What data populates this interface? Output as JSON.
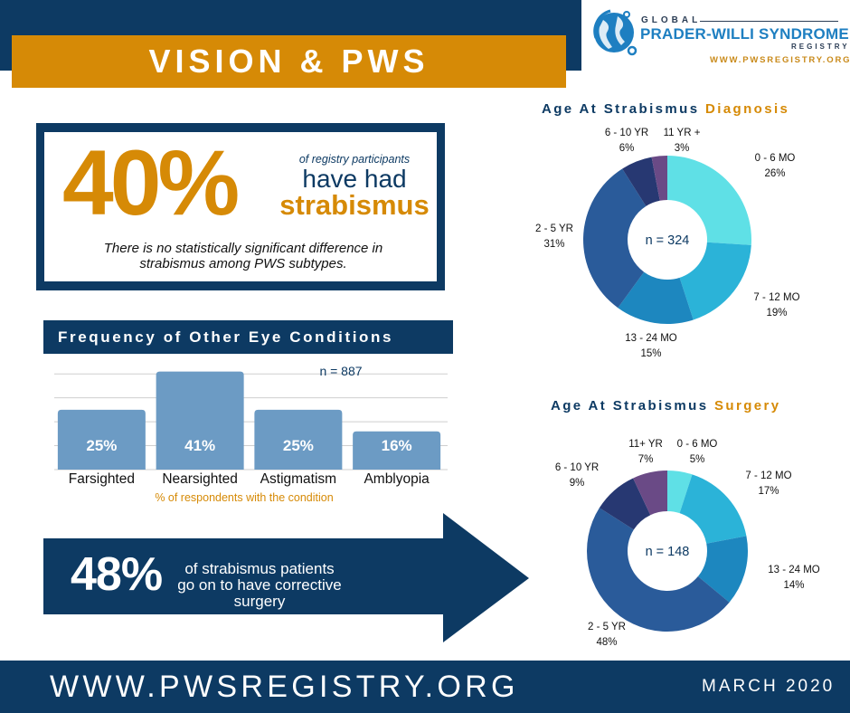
{
  "header": {
    "title": "VISION & PWS",
    "logo": {
      "line1": "GLOBAL",
      "line2": "PRADER-WILLI SYNDROME",
      "line3": "REGISTRY",
      "url": "WWW.PWSREGISTRY.ORG",
      "icon": "globe-icon"
    }
  },
  "stat": {
    "big": "40%",
    "small": "of registry participants",
    "mid": "have had",
    "strong": "strabismus",
    "note": "There is no statistically significant difference in strabismus among PWS subtypes."
  },
  "surgery": {
    "big": "48%",
    "text": "of strabismus patients go on to have corrective surgery"
  },
  "footer": {
    "url": "WWW.PWSREGISTRY.ORG",
    "date": "MARCH  2020"
  },
  "colors": {
    "navy": "#0d3a63",
    "orange": "#d68a06",
    "bar": "#6c9bc4"
  },
  "chart_data": [
    {
      "type": "bar",
      "title": "Frequency of Other Eye Conditions",
      "categories": [
        "Farsighted",
        "Nearsighted",
        "Astigmatism",
        "Amblyopia"
      ],
      "values": [
        25,
        41,
        25,
        16
      ],
      "value_labels": [
        "25%",
        "41%",
        "25%",
        "16%"
      ],
      "annotation": "n = 887",
      "xlabel": "% of respondents with the condition",
      "ylim": [
        0,
        45
      ],
      "grid": true
    },
    {
      "type": "pie",
      "title_pre": "Age At Strabismus ",
      "title_hl": "Diagnosis",
      "center_label": "n = 324",
      "slices": [
        {
          "label": "0 - 6 MO",
          "value": 26,
          "pct": "26%",
          "color": "#5fe0e6"
        },
        {
          "label": "7 - 12 MO",
          "value": 19,
          "pct": "19%",
          "color": "#2bb3d8"
        },
        {
          "label": "13 - 24 MO",
          "value": 15,
          "pct": "15%",
          "color": "#1d87bf"
        },
        {
          "label": "2 - 5 YR",
          "value": 31,
          "pct": "31%",
          "color": "#2a5b9a"
        },
        {
          "label": "6 - 10 YR",
          "value": 6,
          "pct": "6%",
          "color": "#273872"
        },
        {
          "label": "11 YR +",
          "value": 3,
          "pct": "3%",
          "color": "#6a4a86"
        }
      ]
    },
    {
      "type": "pie",
      "title_pre": "Age At Strabismus ",
      "title_hl": "Surgery",
      "center_label": "n = 148",
      "slices": [
        {
          "label": "0 - 6 MO",
          "value": 5,
          "pct": "5%",
          "color": "#5fe0e6"
        },
        {
          "label": "7 - 12 MO",
          "value": 17,
          "pct": "17%",
          "color": "#2bb3d8"
        },
        {
          "label": "13 - 24 MO",
          "value": 14,
          "pct": "14%",
          "color": "#1d87bf"
        },
        {
          "label": "2 - 5 YR",
          "value": 48,
          "pct": "48%",
          "color": "#2a5b9a"
        },
        {
          "label": "6 - 10 YR",
          "value": 9,
          "pct": "9%",
          "color": "#273872"
        },
        {
          "label": "11+ YR",
          "value": 7,
          "pct": "7%",
          "color": "#6a4a86"
        }
      ]
    }
  ]
}
